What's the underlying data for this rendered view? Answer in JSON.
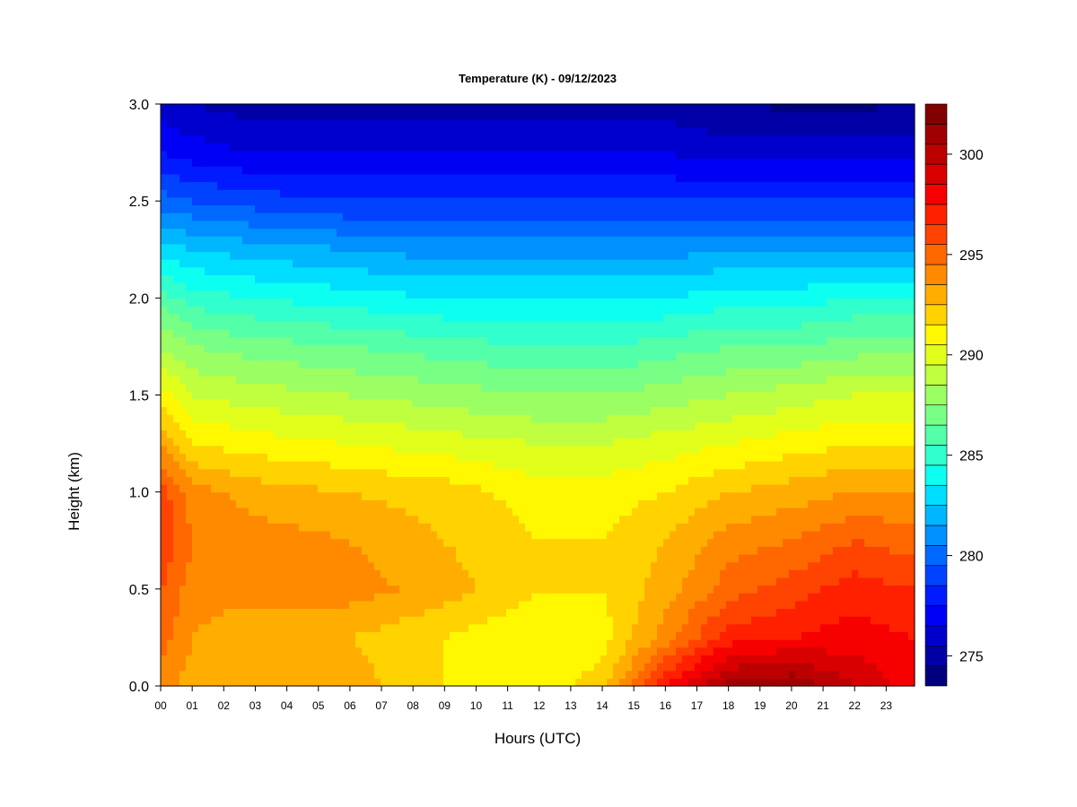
{
  "chart_data": {
    "type": "heatmap",
    "title": "Temperature (K) - 09/12/2023",
    "xlabel": "Hours (UTC)",
    "ylabel": "Height (km)",
    "x_ticks": [
      "00",
      "01",
      "02",
      "03",
      "04",
      "05",
      "06",
      "07",
      "08",
      "09",
      "10",
      "11",
      "12",
      "13",
      "14",
      "15",
      "16",
      "17",
      "18",
      "19",
      "20",
      "21",
      "22",
      "23"
    ],
    "y_ticks": [
      "0.0",
      "0.5",
      "1.0",
      "1.5",
      "2.0",
      "2.5",
      "3.0"
    ],
    "xlim": [
      0,
      23.9
    ],
    "ylim": [
      0,
      3.0
    ],
    "colorbar": {
      "min": 274,
      "max": 303,
      "step": 1,
      "ticks": [
        275,
        280,
        285,
        290,
        295,
        300
      ],
      "colors": [
        "#00007F",
        "#0000A6",
        "#0000CD",
        "#0000F4",
        "#001BFF",
        "#0042FF",
        "#0069FF",
        "#0090FF",
        "#00B7FF",
        "#00DEFF",
        "#0DFFF1",
        "#31FFCD",
        "#54FFAA",
        "#78FF86",
        "#9BFF63",
        "#BFFF3F",
        "#E2FF1C",
        "#FFF800",
        "#FFD200",
        "#FFAE00",
        "#FF8A00",
        "#FF6700",
        "#FF4300",
        "#FF2000",
        "#F60000",
        "#D90000",
        "#BC0000",
        "#9F0000",
        "#820000"
      ]
    },
    "profiles": [
      {
        "hour": 0,
        "heights": [
          0,
          0.25,
          0.5,
          0.75,
          1.0,
          1.25,
          1.5,
          1.75,
          2.0,
          2.25,
          2.5,
          2.75,
          3.0
        ],
        "values": [
          294.5,
          295.5,
          296.0,
          297.0,
          296.5,
          294.0,
          291.5,
          289.0,
          286.5,
          283.5,
          280.5,
          278.0,
          276.5
        ]
      },
      {
        "hour": 1,
        "heights": [
          0,
          0.25,
          0.5,
          0.75,
          1.0,
          1.25,
          1.5,
          1.75,
          2.0,
          2.25,
          2.5,
          2.75,
          3.0
        ],
        "values": [
          293.5,
          294.0,
          294.5,
          295.0,
          294.5,
          292.0,
          290.0,
          288.0,
          285.5,
          283.0,
          280.0,
          277.5,
          276.0
        ]
      },
      {
        "hour": 3,
        "heights": [
          0,
          0.25,
          0.5,
          0.75,
          1.0,
          1.25,
          1.5,
          1.75,
          2.0,
          2.25,
          2.5,
          2.75,
          3.0
        ],
        "values": [
          293.5,
          293.0,
          294.5,
          294.5,
          293.5,
          291.5,
          289.5,
          287.5,
          285.0,
          282.5,
          279.5,
          277.0,
          275.5
        ]
      },
      {
        "hour": 6,
        "heights": [
          0,
          0.25,
          0.5,
          0.75,
          1.0,
          1.25,
          1.5,
          1.75,
          2.0,
          2.25,
          2.5,
          2.75,
          3.0
        ],
        "values": [
          293.5,
          293.0,
          294.5,
          294.0,
          293.0,
          291.0,
          289.0,
          287.0,
          284.5,
          282.0,
          279.0,
          277.0,
          275.5
        ]
      },
      {
        "hour": 9,
        "heights": [
          0,
          0.25,
          0.5,
          0.75,
          1.0,
          1.25,
          1.5,
          1.75,
          2.0,
          2.25,
          2.5,
          2.75,
          3.0
        ],
        "values": [
          292.0,
          292.0,
          293.5,
          293.0,
          292.5,
          290.5,
          288.5,
          286.5,
          284.0,
          281.5,
          279.0,
          277.0,
          275.5
        ]
      },
      {
        "hour": 12,
        "heights": [
          0,
          0.25,
          0.5,
          0.75,
          1.0,
          1.25,
          1.5,
          1.75,
          2.0,
          2.25,
          2.5,
          2.75,
          3.0
        ],
        "values": [
          291.5,
          291.0,
          292.0,
          292.0,
          291.5,
          290.0,
          288.0,
          286.0,
          284.0,
          281.5,
          279.0,
          277.0,
          275.5
        ]
      },
      {
        "hour": 14,
        "heights": [
          0,
          0.25,
          0.5,
          0.75,
          1.0,
          1.25,
          1.5,
          1.75,
          2.0,
          2.25,
          2.5,
          2.75,
          3.0
        ],
        "values": [
          292.5,
          291.5,
          292.0,
          292.0,
          291.5,
          290.0,
          288.0,
          286.0,
          284.0,
          281.5,
          279.0,
          277.0,
          275.5
        ]
      },
      {
        "hour": 16,
        "heights": [
          0,
          0.25,
          0.5,
          0.75,
          1.0,
          1.25,
          1.5,
          1.75,
          2.0,
          2.25,
          2.5,
          2.75,
          3.0
        ],
        "values": [
          298.0,
          294.5,
          293.5,
          293.0,
          292.0,
          290.5,
          288.5,
          286.5,
          284.0,
          281.5,
          279.0,
          277.0,
          275.5
        ]
      },
      {
        "hour": 18,
        "heights": [
          0,
          0.25,
          0.5,
          0.75,
          1.0,
          1.25,
          1.5,
          1.75,
          2.0,
          2.25,
          2.5,
          2.75,
          3.0
        ],
        "values": [
          301.5,
          297.5,
          295.5,
          294.5,
          293.0,
          291.0,
          289.0,
          287.0,
          284.5,
          282.0,
          279.0,
          276.5,
          275.0
        ]
      },
      {
        "hour": 20,
        "heights": [
          0,
          0.25,
          0.5,
          0.75,
          1.0,
          1.25,
          1.5,
          1.75,
          2.0,
          2.25,
          2.5,
          2.75,
          3.0
        ],
        "values": [
          302.0,
          298.0,
          296.5,
          295.0,
          293.5,
          291.5,
          289.5,
          287.0,
          284.5,
          282.0,
          279.0,
          276.5,
          274.8
        ]
      },
      {
        "hour": 22,
        "heights": [
          0,
          0.25,
          0.5,
          0.75,
          1.0,
          1.25,
          1.5,
          1.75,
          2.0,
          2.25,
          2.5,
          2.75,
          3.0
        ],
        "values": [
          300.0,
          298.5,
          297.5,
          296.0,
          294.0,
          292.0,
          290.0,
          287.5,
          285.0,
          282.0,
          279.0,
          276.5,
          274.8
        ]
      },
      {
        "hour": 23.9,
        "heights": [
          0,
          0.25,
          0.5,
          0.75,
          1.0,
          1.25,
          1.5,
          1.75,
          2.0,
          2.25,
          2.5,
          2.75,
          3.0
        ],
        "values": [
          298.5,
          298.0,
          297.0,
          295.5,
          294.0,
          292.0,
          290.0,
          287.5,
          285.0,
          282.0,
          279.0,
          276.5,
          275.0
        ]
      }
    ]
  }
}
